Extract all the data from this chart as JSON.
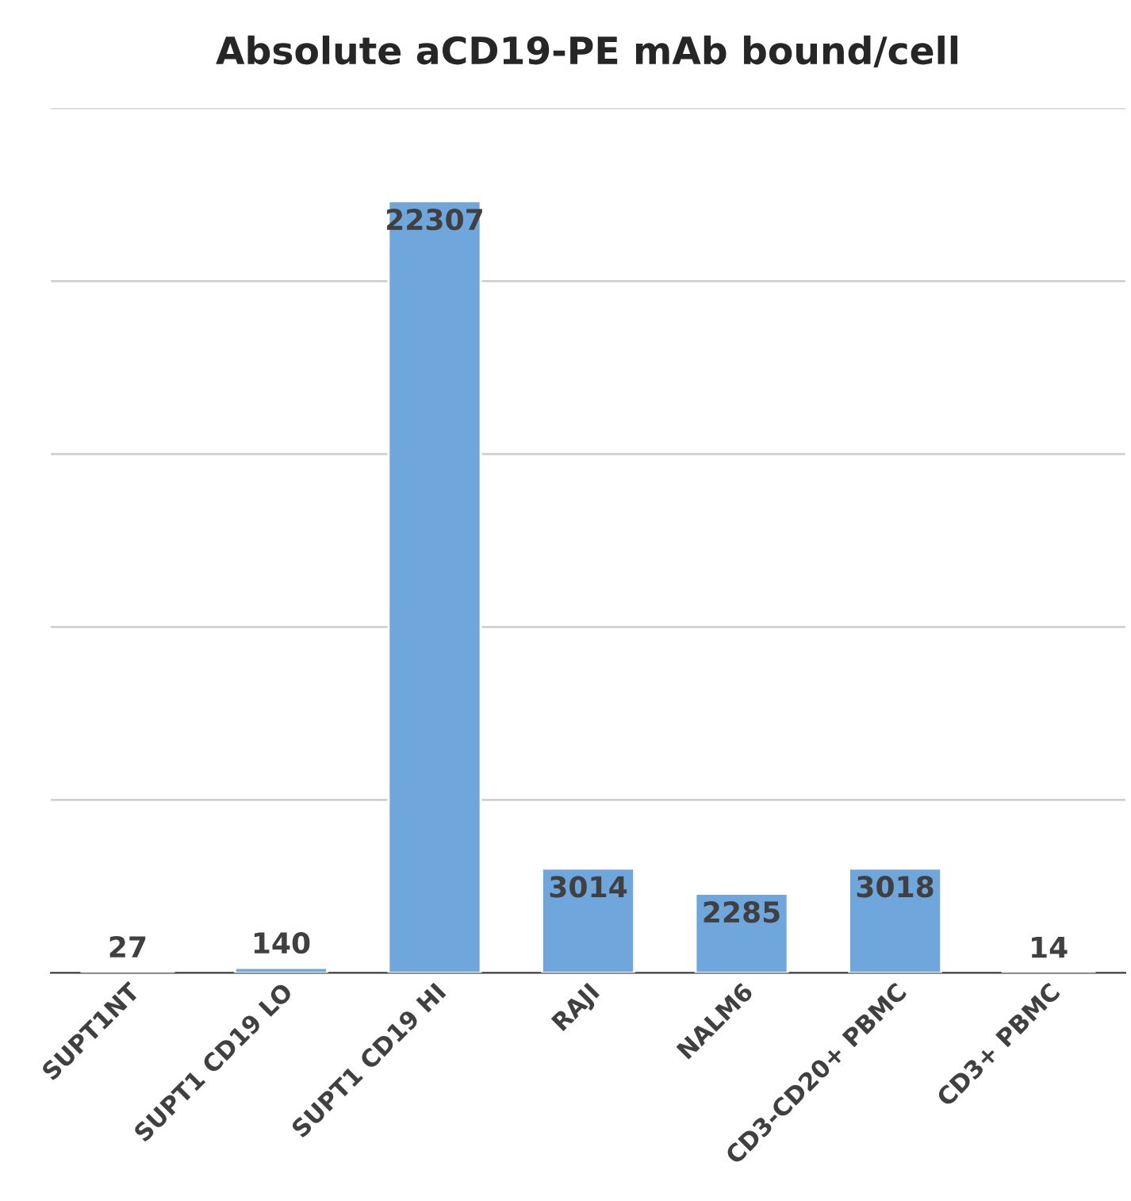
{
  "chart_data": {
    "type": "bar",
    "title": "Absolute aCD19-PE mAb bound/cell",
    "categories": [
      "SUPT1NT",
      "SUPT1 CD19 LO",
      "SUPT1 CD19 HI",
      "RAJI",
      "NALM6",
      "CD3-CD20+ PBMC",
      "CD3+ PBMC"
    ],
    "values": [
      27,
      140,
      22307,
      3014,
      2285,
      3018,
      14
    ],
    "color": "#6fa6dc",
    "ylim": [
      0,
      25000
    ],
    "yticks": [
      {
        "value": 0,
        "label": null
      },
      {
        "value": 5000,
        "label": null
      },
      {
        "value": 10000,
        "label": null
      },
      {
        "value": 15000,
        "label": null
      },
      {
        "value": 20000,
        "label": null
      },
      {
        "value": 25000,
        "label": null
      }
    ],
    "tick_labels": "x",
    "grid": "y",
    "data_labels": true
  }
}
